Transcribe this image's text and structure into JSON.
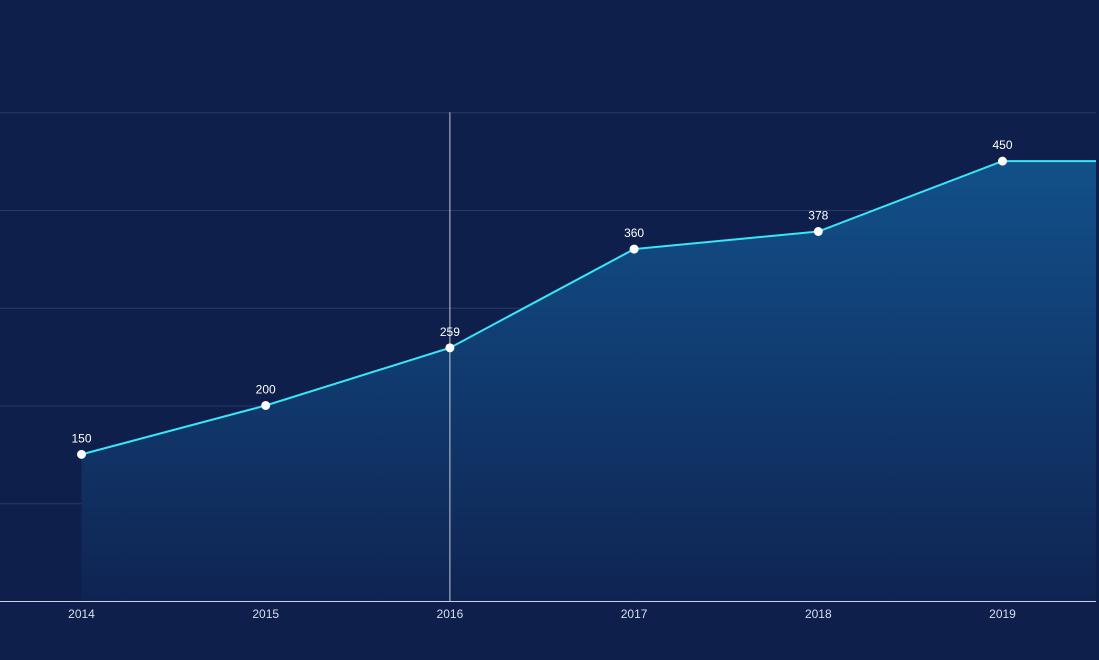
{
  "chart_data": {
    "type": "area",
    "title": "",
    "xlabel": "",
    "ylabel": "",
    "categories": [
      "2014",
      "2015",
      "2016",
      "2017",
      "2018",
      "2019"
    ],
    "series": [
      {
        "name": "",
        "values": [
          150,
          200,
          259,
          360,
          378,
          450
        ]
      }
    ],
    "ylim": [
      0,
      500
    ],
    "grid": true,
    "show_data_labels": true,
    "active_category": "2016",
    "colors": {
      "background": "#0f1f4b",
      "line": "#39e6f5",
      "area_top": "#12508a",
      "area_bottom": "#0f2452",
      "point": "#ffffff",
      "grid": "#2a3a68",
      "axis": "#c9d2e6",
      "text": "#ffffff"
    }
  }
}
